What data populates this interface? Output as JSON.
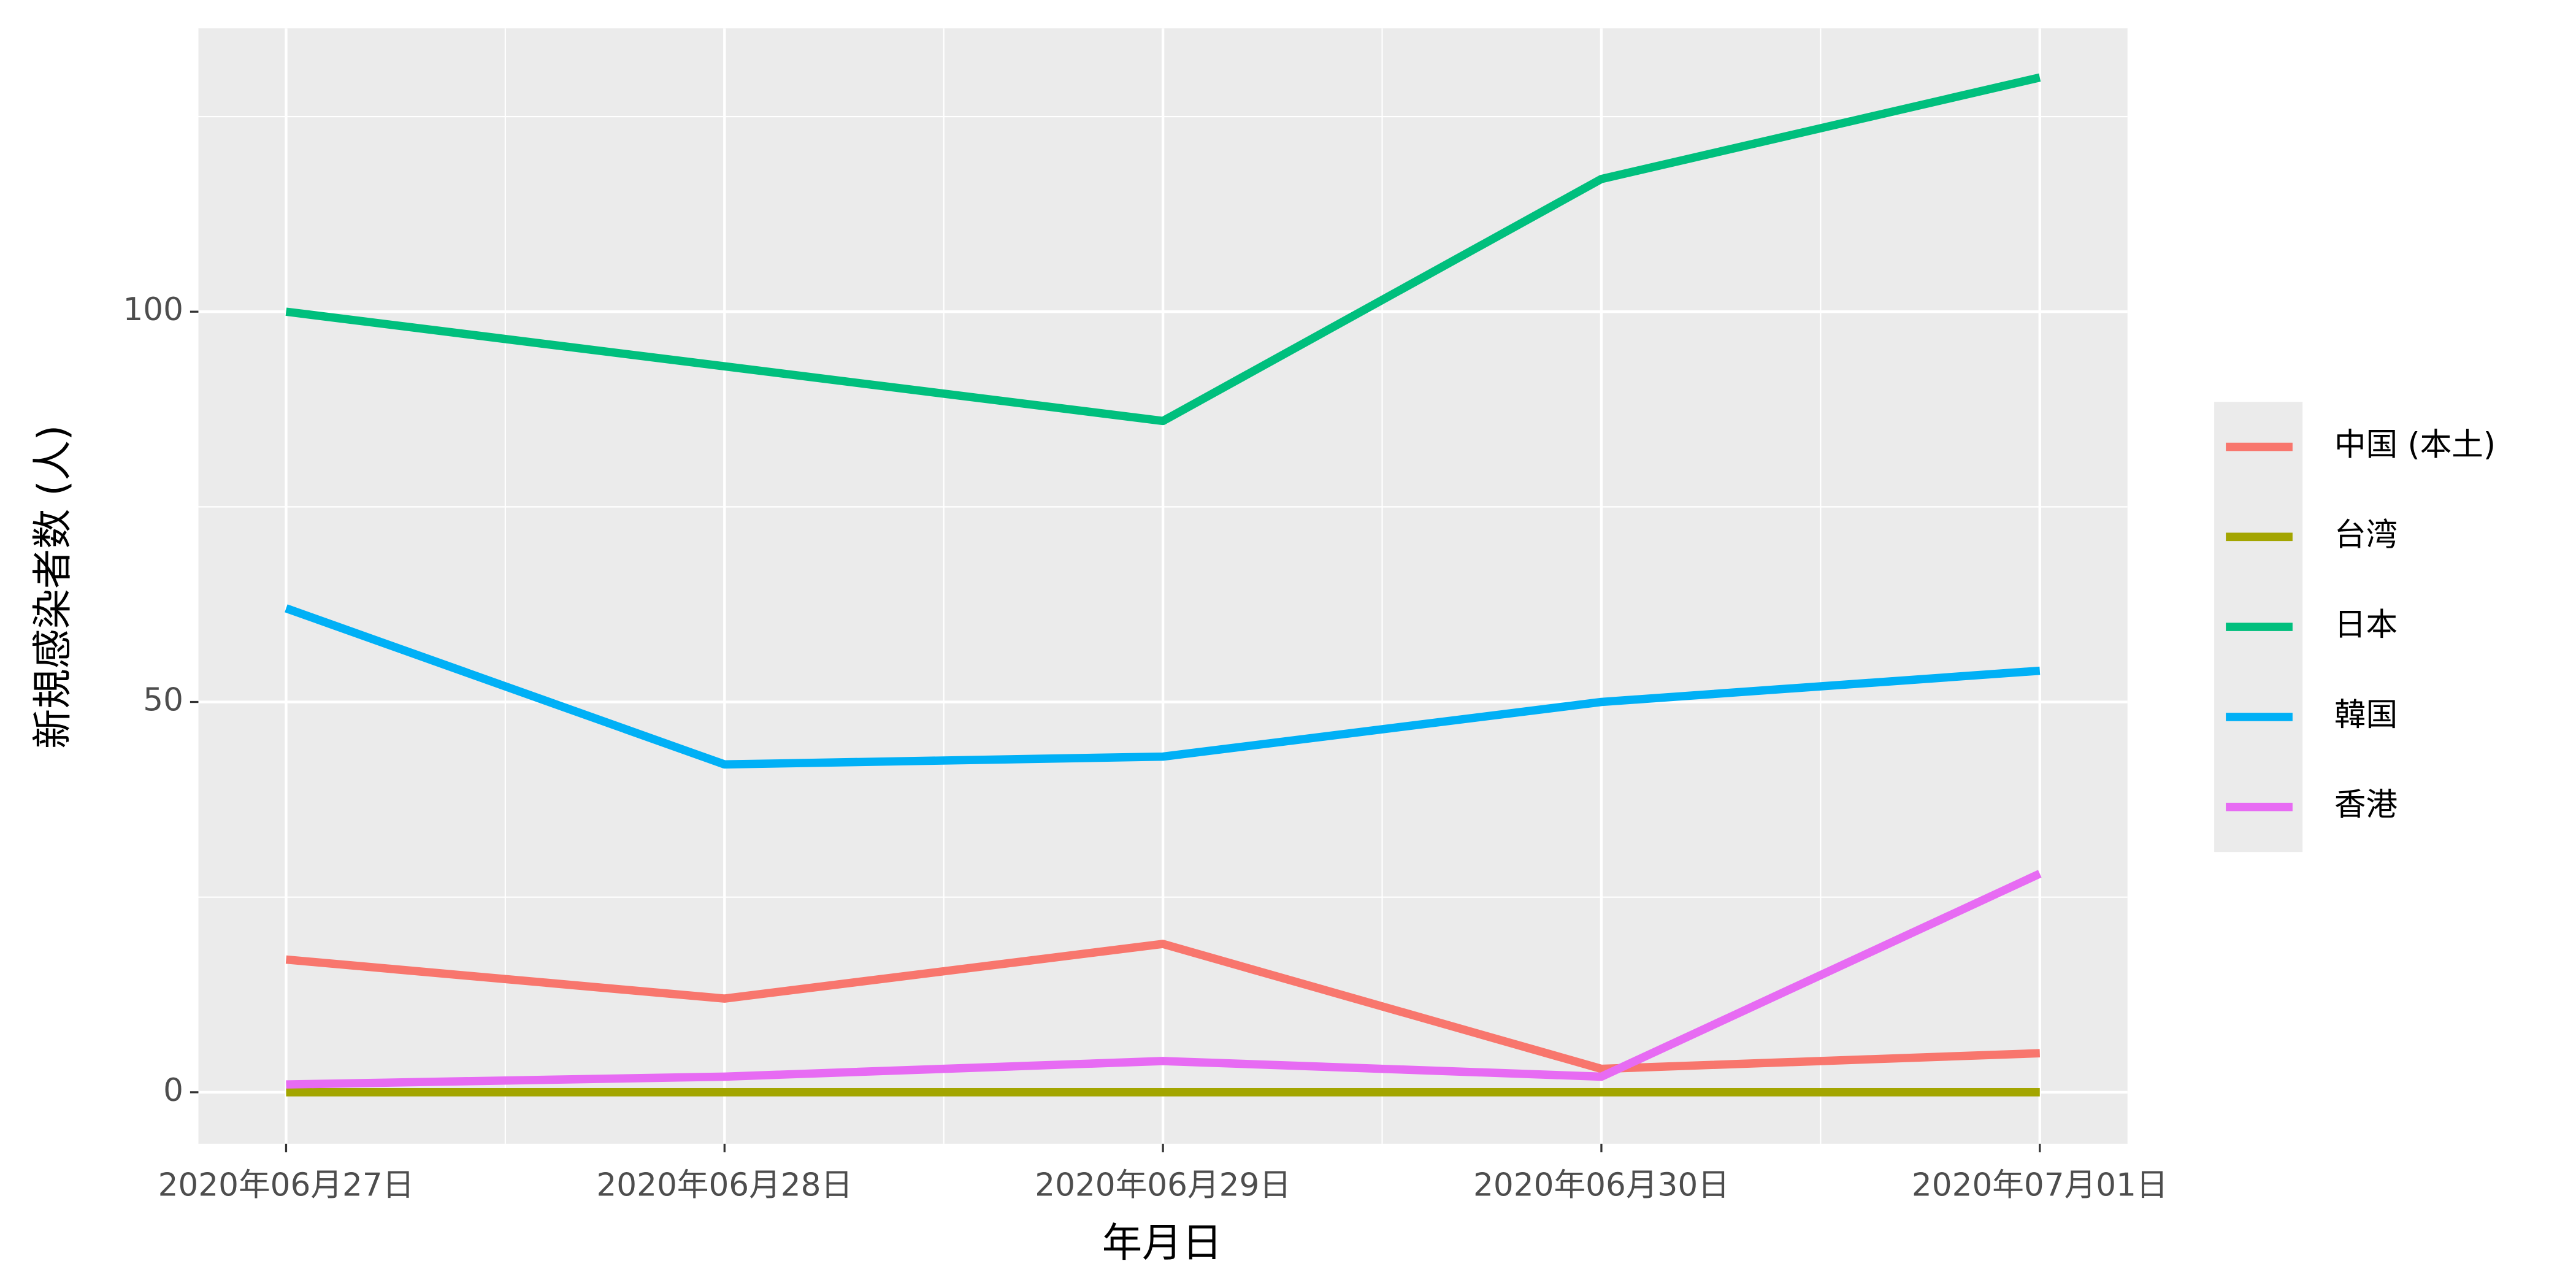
{
  "chart_data": {
    "type": "line",
    "x_label": "年月日",
    "y_label": "新規感染者数 (人)",
    "categories": [
      "2020年06月27日",
      "2020年06月28日",
      "2020年06月29日",
      "2020年06月30日",
      "2020年07月01日"
    ],
    "series": [
      {
        "name": "中国 (本土)",
        "color": "#F8766D",
        "values": [
          17,
          12,
          19,
          3,
          5
        ]
      },
      {
        "name": "台湾",
        "color": "#A3A500",
        "values": [
          0,
          0,
          0,
          0,
          0
        ]
      },
      {
        "name": "日本",
        "color": "#00BF7D",
        "values": [
          100,
          93,
          86,
          117,
          130
        ]
      },
      {
        "name": "韓国",
        "color": "#00B0F6",
        "values": [
          62,
          42,
          43,
          50,
          54
        ]
      },
      {
        "name": "香港",
        "color": "#E76BF3",
        "values": [
          1,
          2,
          4,
          2,
          28
        ]
      }
    ],
    "ylim": [
      -6.6,
      136.3
    ],
    "yticks": [
      0,
      50,
      100
    ],
    "grid": true,
    "legend": "right"
  }
}
